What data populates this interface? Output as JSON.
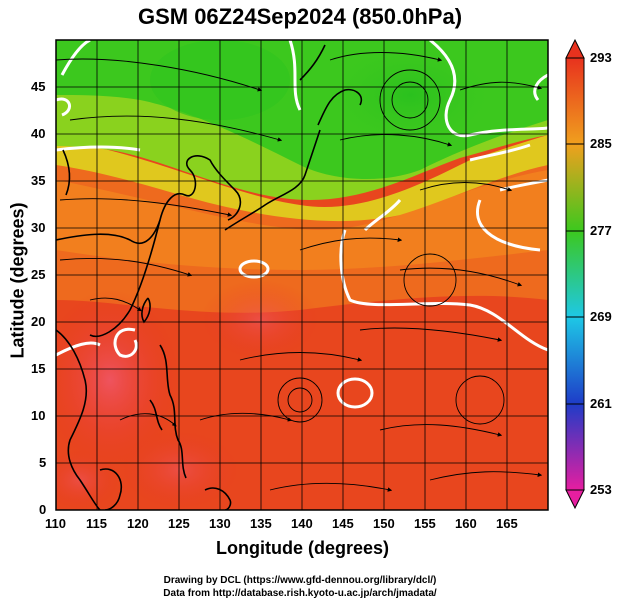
{
  "title": "GSM 06Z24Sep2024 (850.0hPa)",
  "x_axis_label": "Longitude (degrees)",
  "y_axis_label": "Latitude  (degrees)",
  "credits": {
    "line1": "Drawing by DCL (https://www.gfd-dennou.org/library/dcl/)",
    "line2": "Data from http://database.rish.kyoto-u.ac.jp/arch/jmadata/"
  },
  "x_ticks": [
    "110",
    "115",
    "120",
    "125",
    "130",
    "135",
    "140",
    "145",
    "150",
    "155",
    "160",
    "165"
  ],
  "y_ticks": [
    "0",
    "5",
    "10",
    "15",
    "20",
    "25",
    "30",
    "35",
    "40",
    "45"
  ],
  "colorbar_labels": [
    "293",
    "285",
    "277",
    "269",
    "261",
    "253"
  ],
  "map": {
    "lon_range": [
      110,
      170
    ],
    "lat_range": [
      0,
      50
    ],
    "field": "temperature (K) with wind streamlines",
    "colorbar_range": [
      253,
      293
    ],
    "colors": {
      "warm": "#e8321e",
      "orange": "#f07a1e",
      "yellow_green": "#b4dc1e",
      "green": "#3cc81e",
      "land_outline": "#000000",
      "contour": "#ffffff"
    }
  }
}
